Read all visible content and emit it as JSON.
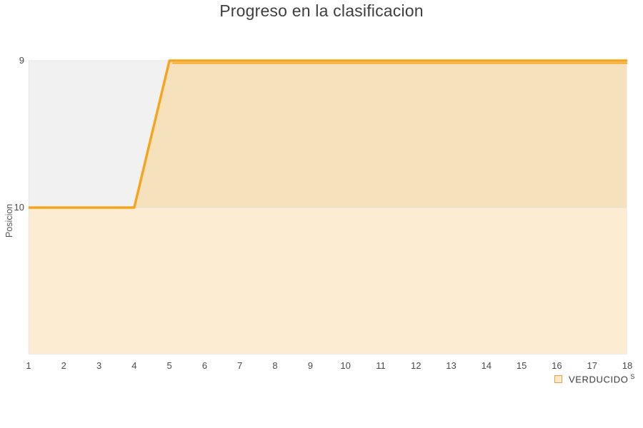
{
  "chart_data": {
    "type": "area",
    "title": "Progreso en la clasificacion",
    "xlabel": "",
    "ylabel": "Posicion",
    "x": [
      1,
      2,
      3,
      4,
      5,
      6,
      7,
      8,
      9,
      10,
      11,
      12,
      13,
      14,
      15,
      16,
      17,
      18
    ],
    "series": [
      {
        "name": "VERDUCIDO",
        "values": [
          10,
          10,
          10,
          10,
          9,
          9,
          9,
          9,
          9,
          9,
          9,
          9,
          9,
          9,
          9,
          9,
          9,
          9
        ]
      }
    ],
    "y_ticks": [
      9,
      10
    ],
    "ylim": [
      9,
      11
    ],
    "y_axis_inverted": true,
    "grid": "horizontal",
    "legend": {
      "label": "VERDUCIDO",
      "sup": "S",
      "position": "bottom-right"
    },
    "colors": {
      "line": "#F8A41B",
      "area_between_9_and_10": "#F6E1BD",
      "area_below_10": "#FCEDD2",
      "plot_background": "#F1F1F2",
      "grid_line": "#E3DED4",
      "plot_border": "#E4E4E4",
      "tick_text": "#4A4A4A",
      "title_text": "#3F3F3F",
      "legend_marker_fill": "#FAE8CA",
      "legend_marker_border": "#DFA23C"
    }
  }
}
